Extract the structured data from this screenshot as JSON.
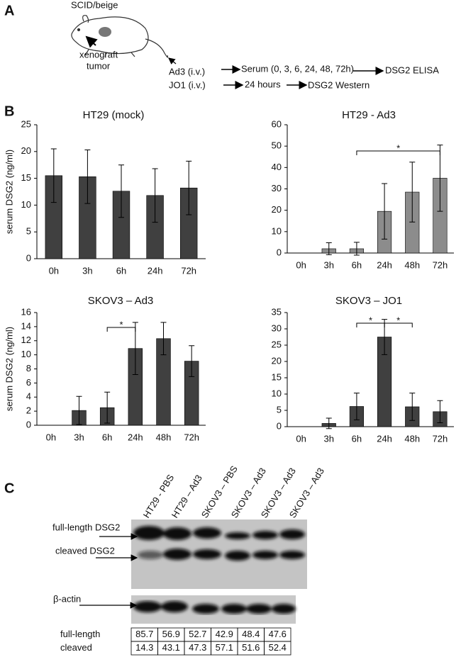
{
  "panels": [
    "A",
    "B",
    "C"
  ],
  "diagram": {
    "mouse": "SCID/beige",
    "tumor": [
      "xenograft",
      "tumor"
    ],
    "routes": [
      {
        "agent": "Ad3 (i.v.)",
        "steps": [
          "Serum (0, 3, 6, 24, 48, 72h)",
          "DSG2 ELISA"
        ]
      },
      {
        "agent": "JO1 (i.v.)",
        "steps": [
          "24 hours",
          "DSG2 Western"
        ]
      }
    ]
  },
  "chart_data": [
    {
      "type": "bar",
      "title": "HT29 (mock)",
      "y_label": "serum DSG2 (ng/ml)",
      "categories": [
        "0h",
        "3h",
        "6h",
        "24h",
        "72h"
      ],
      "values": [
        15.5,
        15.3,
        12.6,
        11.8,
        13.2
      ],
      "errors": [
        5,
        5,
        4.9,
        5,
        5
      ],
      "color": "#404040",
      "ylim": [
        0,
        25
      ],
      "yticks": [
        0,
        5,
        10,
        15,
        20,
        25
      ],
      "grid": false
    },
    {
      "type": "bar",
      "title": "HT29 - Ad3",
      "categories": [
        "0h",
        "3h",
        "6h",
        "24h",
        "48h",
        "72h"
      ],
      "values": [
        0,
        2,
        2,
        19.5,
        28.5,
        35
      ],
      "errors": [
        0,
        2.8,
        3,
        13,
        14,
        15.5
      ],
      "color": "#8c8c8c",
      "ylim": [
        0,
        60
      ],
      "yticks": [
        0,
        10,
        20,
        30,
        40,
        50,
        60
      ],
      "grid": false,
      "annotations": [
        "*"
      ]
    },
    {
      "type": "bar",
      "title": "SKOV3 – Ad3",
      "y_label": "serum DSG2 (ng/ml)",
      "categories": [
        "0h",
        "3h",
        "6h",
        "24h",
        "48h",
        "72h"
      ],
      "values": [
        0,
        2.1,
        2.5,
        10.9,
        12.3,
        9.1
      ],
      "errors": [
        0,
        2,
        2.2,
        3.7,
        2.3,
        2.2
      ],
      "color": "#404040",
      "ylim": [
        0,
        16
      ],
      "yticks": [
        0,
        2,
        4,
        6,
        8,
        10,
        12,
        14,
        16
      ],
      "grid": false,
      "annotations": [
        "*"
      ]
    },
    {
      "type": "bar",
      "title": "SKOV3 – JO1",
      "categories": [
        "0h",
        "3h",
        "6h",
        "24h",
        "48h",
        "72h"
      ],
      "values": [
        0,
        1,
        6.2,
        27.5,
        6.1,
        4.6
      ],
      "errors": [
        0,
        1.6,
        4.1,
        5.4,
        4.2,
        3.4
      ],
      "color": "#404040",
      "ylim": [
        0,
        35
      ],
      "yticks": [
        0,
        5,
        10,
        15,
        20,
        25,
        30,
        35
      ],
      "grid": false,
      "annotations": [
        "*",
        "*"
      ]
    }
  ],
  "blot": {
    "lanes": [
      "HT29 - PBS",
      "HT29 – Ad3",
      "SKOV3 – PBS",
      "SKOV3 – Ad3",
      "SKOV3 – Ad3",
      "SKOV3 – Ad3"
    ],
    "bands": [
      "full-length DSG2",
      "cleaved DSG2",
      "β-actin"
    ],
    "table": {
      "rows": [
        {
          "label": "full-length",
          "values": [
            "85.7",
            "56.9",
            "52.7",
            "42.9",
            "48.4",
            "47.6"
          ]
        },
        {
          "label": "cleaved",
          "values": [
            "14.3",
            "43.1",
            "47.3",
            "57.1",
            "51.6",
            "52.4"
          ]
        }
      ]
    }
  }
}
